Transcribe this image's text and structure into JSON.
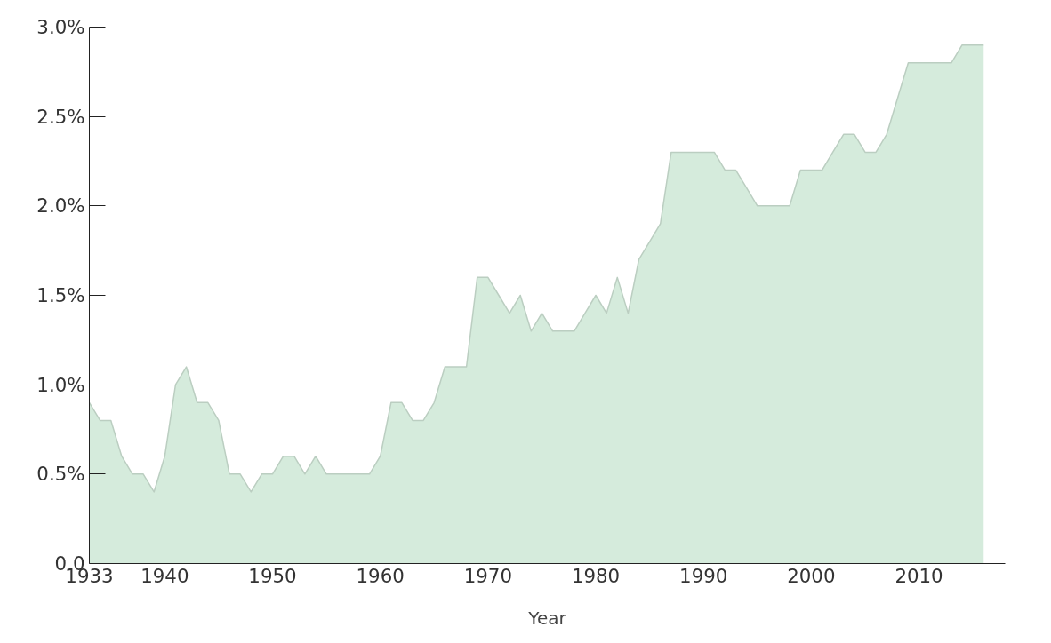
{
  "chart_data": {
    "type": "area",
    "xlabel": "Year",
    "x": [
      1933,
      1934,
      1935,
      1936,
      1937,
      1938,
      1939,
      1940,
      1941,
      1942,
      1943,
      1944,
      1945,
      1946,
      1947,
      1948,
      1949,
      1950,
      1951,
      1952,
      1953,
      1954,
      1955,
      1956,
      1957,
      1958,
      1959,
      1960,
      1961,
      1962,
      1963,
      1964,
      1965,
      1966,
      1967,
      1968,
      1969,
      1970,
      1971,
      1972,
      1973,
      1974,
      1975,
      1976,
      1977,
      1978,
      1979,
      1980,
      1981,
      1982,
      1983,
      1984,
      1985,
      1986,
      1987,
      1988,
      1989,
      1990,
      1991,
      1992,
      1993,
      1994,
      1995,
      1996,
      1997,
      1998,
      1999,
      2000,
      2001,
      2002,
      2003,
      2004,
      2005,
      2006,
      2007,
      2008,
      2009,
      2010,
      2011,
      2012,
      2013,
      2014,
      2015,
      2016
    ],
    "series": [
      {
        "color": "#d5ebdc",
        "values": [
          0.9,
          0.8,
          0.8,
          0.6,
          0.5,
          0.5,
          0.4,
          0.6,
          1.0,
          1.1,
          0.9,
          0.9,
          0.8,
          0.5,
          0.5,
          0.4,
          0.5,
          0.5,
          0.6,
          0.6,
          0.5,
          0.6,
          0.5,
          0.5,
          0.5,
          0.5,
          0.5,
          0.6,
          0.9,
          0.9,
          0.8,
          0.8,
          0.9,
          1.1,
          1.1,
          1.1,
          1.6,
          1.6,
          1.5,
          1.4,
          1.5,
          1.3,
          1.4,
          1.3,
          1.3,
          1.3,
          1.4,
          1.5,
          1.4,
          1.6,
          1.4,
          1.7,
          1.8,
          1.9,
          2.3,
          2.3,
          2.3,
          2.3,
          2.3,
          2.2,
          2.2,
          2.1,
          2.0,
          2.0,
          2.0,
          2.0,
          2.2,
          2.2,
          2.2,
          2.3,
          2.4,
          2.4,
          2.3,
          2.3,
          2.4,
          2.6,
          2.8,
          2.8,
          2.8,
          2.8,
          2.8,
          2.9,
          2.9,
          2.9
        ]
      }
    ],
    "xlim": [
      1933,
      2018
    ],
    "xticks": [
      1933,
      1940,
      1950,
      1960,
      1970,
      1980,
      1990,
      2000,
      2010
    ],
    "ylim": [
      0,
      3.0
    ],
    "yticks": [
      {
        "value": 0,
        "label": "0.0"
      },
      {
        "value": 0.5,
        "label": "0.5%"
      },
      {
        "value": 1.0,
        "label": "1.0%"
      },
      {
        "value": 1.5,
        "label": "1.5%"
      },
      {
        "value": 2.0,
        "label": "2.0%"
      },
      {
        "value": 2.5,
        "label": "2.5%"
      },
      {
        "value": 3.0,
        "label": "3.0%"
      }
    ],
    "grid": false
  }
}
